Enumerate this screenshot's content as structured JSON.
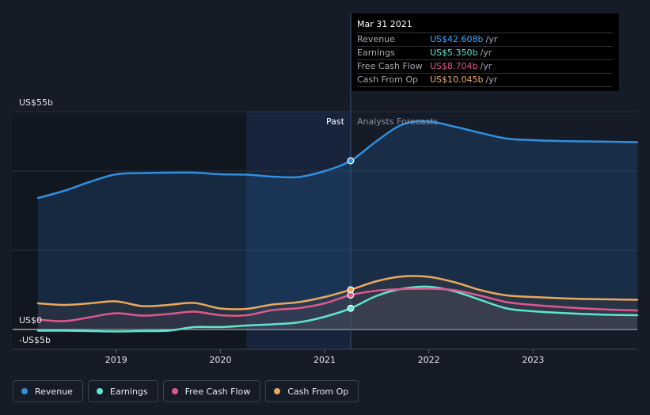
{
  "tooltip": {
    "date": "Mar 31 2021",
    "rows": [
      {
        "label": "Revenue",
        "value": "US$42.608b",
        "unit": "/yr",
        "color": "#3fa7f5"
      },
      {
        "label": "Earnings",
        "value": "US$5.350b",
        "unit": "/yr",
        "color": "#5ee6cf"
      },
      {
        "label": "Free Cash Flow",
        "value": "US$8.704b",
        "unit": "/yr",
        "color": "#e0578c"
      },
      {
        "label": "Cash From Op",
        "value": "US$10.045b",
        "unit": "/yr",
        "color": "#f0b063"
      }
    ]
  },
  "labels": {
    "past": "Past",
    "forecast": "Analysts Forecasts"
  },
  "legend": [
    {
      "label": "Revenue",
      "color": "#2f8fe0"
    },
    {
      "label": "Earnings",
      "color": "#5ee6cf"
    },
    {
      "label": "Free Cash Flow",
      "color": "#e0578c"
    },
    {
      "label": "Cash From Op",
      "color": "#e9a85e"
    }
  ],
  "chart_data": {
    "type": "line",
    "y_tick_labels": [
      "US$55b",
      "US$0",
      "-US$5b"
    ],
    "x_tick_labels": [
      "2019",
      "2020",
      "2021",
      "2022",
      "2023"
    ],
    "ylim": [
      -5,
      55
    ],
    "xlim": [
      2018.25,
      2024.0
    ],
    "divider_x": 2021.25,
    "grid": true,
    "series": [
      {
        "name": "Revenue",
        "color": "#2f8fe0",
        "x": [
          2018.25,
          2018.5,
          2018.75,
          2019.0,
          2019.25,
          2019.5,
          2019.75,
          2020.0,
          2020.25,
          2020.5,
          2020.75,
          2021.0,
          2021.25,
          2021.5,
          2021.75,
          2022.0,
          2022.25,
          2022.5,
          2022.75,
          2023.0,
          2023.25,
          2023.5,
          2023.75,
          2024.0
        ],
        "values": [
          33.2,
          35.0,
          37.3,
          39.2,
          39.5,
          39.6,
          39.6,
          39.2,
          39.1,
          38.6,
          38.5,
          40.0,
          42.6,
          47.6,
          51.8,
          52.5,
          51.2,
          49.6,
          48.2,
          47.8,
          47.6,
          47.5,
          47.4,
          47.3
        ]
      },
      {
        "name": "Earnings",
        "color": "#5ee6cf",
        "x": [
          2018.25,
          2018.5,
          2018.75,
          2019.0,
          2019.25,
          2019.5,
          2019.75,
          2020.0,
          2020.25,
          2020.5,
          2020.75,
          2021.0,
          2021.25,
          2021.5,
          2021.75,
          2022.0,
          2022.25,
          2022.5,
          2022.75,
          2023.0,
          2023.25,
          2023.5,
          2023.75,
          2024.0
        ],
        "values": [
          -0.3,
          -0.3,
          -0.4,
          -0.5,
          -0.4,
          -0.3,
          0.6,
          0.6,
          1.0,
          1.3,
          1.8,
          3.2,
          5.35,
          8.5,
          10.3,
          10.8,
          9.6,
          7.4,
          5.3,
          4.6,
          4.2,
          3.9,
          3.7,
          3.6
        ]
      },
      {
        "name": "Free Cash Flow",
        "color": "#e0578c",
        "x": [
          2018.25,
          2018.5,
          2018.75,
          2019.0,
          2019.25,
          2019.5,
          2019.75,
          2020.0,
          2020.25,
          2020.5,
          2020.75,
          2021.0,
          2021.25,
          2021.5,
          2021.75,
          2022.0,
          2022.25,
          2022.5,
          2022.75,
          2023.0,
          2023.25,
          2023.5,
          2023.75,
          2024.0
        ],
        "values": [
          2.5,
          2.1,
          3.1,
          4.1,
          3.5,
          3.9,
          4.5,
          3.6,
          3.6,
          4.9,
          5.4,
          6.6,
          8.7,
          9.8,
          10.2,
          10.3,
          9.9,
          8.5,
          6.9,
          6.2,
          5.7,
          5.3,
          5.0,
          4.8
        ]
      },
      {
        "name": "Cash From Op",
        "color": "#e9a85e",
        "x": [
          2018.25,
          2018.5,
          2018.75,
          2019.0,
          2019.25,
          2019.5,
          2019.75,
          2020.0,
          2020.25,
          2020.5,
          2020.75,
          2021.0,
          2021.25,
          2021.5,
          2021.75,
          2022.0,
          2022.25,
          2022.5,
          2022.75,
          2023.0,
          2023.25,
          2023.5,
          2023.75,
          2024.0
        ],
        "values": [
          6.6,
          6.2,
          6.6,
          7.1,
          5.9,
          6.2,
          6.7,
          5.3,
          5.2,
          6.3,
          6.9,
          8.2,
          10.045,
          12.2,
          13.4,
          13.3,
          11.9,
          9.9,
          8.6,
          8.2,
          7.9,
          7.7,
          7.6,
          7.5
        ]
      }
    ]
  }
}
